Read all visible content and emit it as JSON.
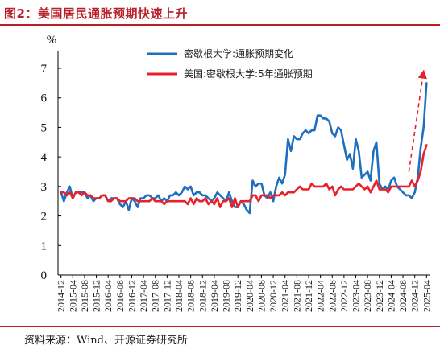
{
  "figure_title": "图2：美国居民通胀预期快速上升",
  "source": "资料来源：Wind、开源证券研究所",
  "colors": {
    "title": "#b8202a",
    "series_1": "#1f6fbf",
    "series_2": "#e8202a",
    "arrow": "#e8202a"
  },
  "chart_data": {
    "type": "line",
    "title": "",
    "ylabel": "%",
    "xlabel": "",
    "ylim": [
      0,
      7
    ],
    "yticks": [
      0,
      1,
      2,
      3,
      4,
      5,
      6,
      7
    ],
    "xlim": [
      "2014-11",
      "2025-05"
    ],
    "xticks": [
      "2014-12",
      "2015-04",
      "2015-08",
      "2015-12",
      "2016-04",
      "2016-08",
      "2016-12",
      "2017-04",
      "2017-08",
      "2017-12",
      "2018-04",
      "2018-08",
      "2018-12",
      "2019-04",
      "2019-08",
      "2019-12",
      "2020-04",
      "2020-08",
      "2020-12",
      "2021-04",
      "2021-08",
      "2021-12",
      "2022-04",
      "2022-08",
      "2022-12",
      "2023-04",
      "2023-08",
      "2023-12",
      "2024-04",
      "2024-08",
      "2024-12",
      "2025-04"
    ],
    "grid": false,
    "legend": "top-right",
    "series": [
      {
        "name": "密歇根大学:通胀预期变化",
        "points": [
          [
            "2014-12",
            2.8
          ],
          [
            "2015-01",
            2.5
          ],
          [
            "2015-02",
            2.8
          ],
          [
            "2015-03",
            3.0
          ],
          [
            "2015-04",
            2.6
          ],
          [
            "2015-05",
            2.8
          ],
          [
            "2015-06",
            2.8
          ],
          [
            "2015-07",
            2.8
          ],
          [
            "2015-08",
            2.8
          ],
          [
            "2015-09",
            2.6
          ],
          [
            "2015-10",
            2.7
          ],
          [
            "2015-11",
            2.5
          ],
          [
            "2015-12",
            2.6
          ],
          [
            "2016-01",
            2.6
          ],
          [
            "2016-02",
            2.7
          ],
          [
            "2016-03",
            2.7
          ],
          [
            "2016-04",
            2.5
          ],
          [
            "2016-05",
            2.6
          ],
          [
            "2016-06",
            2.6
          ],
          [
            "2016-07",
            2.6
          ],
          [
            "2016-08",
            2.4
          ],
          [
            "2016-09",
            2.3
          ],
          [
            "2016-10",
            2.5
          ],
          [
            "2016-11",
            2.2
          ],
          [
            "2016-12",
            2.6
          ],
          [
            "2017-01",
            2.5
          ],
          [
            "2017-02",
            2.3
          ],
          [
            "2017-03",
            2.6
          ],
          [
            "2017-04",
            2.6
          ],
          [
            "2017-05",
            2.7
          ],
          [
            "2017-06",
            2.7
          ],
          [
            "2017-07",
            2.6
          ],
          [
            "2017-08",
            2.6
          ],
          [
            "2017-09",
            2.7
          ],
          [
            "2017-10",
            2.5
          ],
          [
            "2017-11",
            2.6
          ],
          [
            "2017-12",
            2.5
          ],
          [
            "2018-01",
            2.7
          ],
          [
            "2018-02",
            2.7
          ],
          [
            "2018-03",
            2.8
          ],
          [
            "2018-04",
            2.7
          ],
          [
            "2018-05",
            2.8
          ],
          [
            "2018-06",
            3.0
          ],
          [
            "2018-07",
            2.9
          ],
          [
            "2018-08",
            3.0
          ],
          [
            "2018-09",
            2.7
          ],
          [
            "2018-10",
            2.8
          ],
          [
            "2018-11",
            2.8
          ],
          [
            "2018-12",
            2.7
          ],
          [
            "2019-01",
            2.7
          ],
          [
            "2019-02",
            2.6
          ],
          [
            "2019-03",
            2.5
          ],
          [
            "2019-04",
            2.6
          ],
          [
            "2019-05",
            2.8
          ],
          [
            "2019-06",
            2.7
          ],
          [
            "2019-07",
            2.6
          ],
          [
            "2019-08",
            2.5
          ],
          [
            "2019-09",
            2.8
          ],
          [
            "2019-10",
            2.5
          ],
          [
            "2019-11",
            2.3
          ],
          [
            "2019-12",
            2.3
          ],
          [
            "2020-01",
            2.5
          ],
          [
            "2020-02",
            2.4
          ],
          [
            "2020-03",
            2.2
          ],
          [
            "2020-04",
            2.1
          ],
          [
            "2020-05",
            3.2
          ],
          [
            "2020-06",
            3.0
          ],
          [
            "2020-07",
            3.1
          ],
          [
            "2020-08",
            3.1
          ],
          [
            "2020-09",
            2.7
          ],
          [
            "2020-10",
            2.6
          ],
          [
            "2020-11",
            2.8
          ],
          [
            "2020-12",
            2.5
          ],
          [
            "2021-01",
            3.0
          ],
          [
            "2021-02",
            3.3
          ],
          [
            "2021-03",
            3.1
          ],
          [
            "2021-04",
            3.4
          ],
          [
            "2021-05",
            4.6
          ],
          [
            "2021-06",
            4.2
          ],
          [
            "2021-07",
            4.7
          ],
          [
            "2021-08",
            4.6
          ],
          [
            "2021-09",
            4.6
          ],
          [
            "2021-10",
            4.8
          ],
          [
            "2021-11",
            4.9
          ],
          [
            "2021-12",
            4.8
          ],
          [
            "2022-01",
            4.9
          ],
          [
            "2022-02",
            4.9
          ],
          [
            "2022-03",
            5.4
          ],
          [
            "2022-04",
            5.4
          ],
          [
            "2022-05",
            5.3
          ],
          [
            "2022-06",
            5.3
          ],
          [
            "2022-07",
            5.2
          ],
          [
            "2022-08",
            4.8
          ],
          [
            "2022-09",
            4.7
          ],
          [
            "2022-10",
            5.0
          ],
          [
            "2022-11",
            4.9
          ],
          [
            "2022-12",
            4.4
          ],
          [
            "2023-01",
            3.9
          ],
          [
            "2023-02",
            4.1
          ],
          [
            "2023-03",
            3.6
          ],
          [
            "2023-04",
            4.6
          ],
          [
            "2023-05",
            4.2
          ],
          [
            "2023-06",
            3.3
          ],
          [
            "2023-07",
            3.4
          ],
          [
            "2023-08",
            3.5
          ],
          [
            "2023-09",
            3.2
          ],
          [
            "2023-10",
            4.2
          ],
          [
            "2023-11",
            4.5
          ],
          [
            "2023-12",
            3.1
          ],
          [
            "2024-01",
            2.9
          ],
          [
            "2024-02",
            3.0
          ],
          [
            "2024-03",
            2.9
          ],
          [
            "2024-04",
            3.2
          ],
          [
            "2024-05",
            3.3
          ],
          [
            "2024-06",
            3.0
          ],
          [
            "2024-07",
            2.9
          ],
          [
            "2024-08",
            2.8
          ],
          [
            "2024-09",
            2.7
          ],
          [
            "2024-10",
            2.7
          ],
          [
            "2024-11",
            2.6
          ],
          [
            "2024-12",
            2.8
          ],
          [
            "2025-01",
            3.3
          ],
          [
            "2025-02",
            4.3
          ],
          [
            "2025-03",
            5.0
          ],
          [
            "2025-04",
            6.5
          ]
        ]
      },
      {
        "name": "美国:密歇根大学:5年通胀预期",
        "points": [
          [
            "2014-12",
            2.8
          ],
          [
            "2015-01",
            2.8
          ],
          [
            "2015-02",
            2.7
          ],
          [
            "2015-03",
            2.8
          ],
          [
            "2015-04",
            2.6
          ],
          [
            "2015-05",
            2.8
          ],
          [
            "2015-06",
            2.8
          ],
          [
            "2015-07",
            2.7
          ],
          [
            "2015-08",
            2.8
          ],
          [
            "2015-09",
            2.7
          ],
          [
            "2015-10",
            2.7
          ],
          [
            "2015-11",
            2.6
          ],
          [
            "2015-12",
            2.6
          ],
          [
            "2016-01",
            2.6
          ],
          [
            "2016-02",
            2.7
          ],
          [
            "2016-03",
            2.7
          ],
          [
            "2016-04",
            2.5
          ],
          [
            "2016-05",
            2.5
          ],
          [
            "2016-06",
            2.6
          ],
          [
            "2016-07",
            2.6
          ],
          [
            "2016-08",
            2.5
          ],
          [
            "2016-09",
            2.5
          ],
          [
            "2016-10",
            2.5
          ],
          [
            "2016-11",
            2.6
          ],
          [
            "2016-12",
            2.6
          ],
          [
            "2017-01",
            2.6
          ],
          [
            "2017-02",
            2.5
          ],
          [
            "2017-03",
            2.5
          ],
          [
            "2017-04",
            2.5
          ],
          [
            "2017-05",
            2.5
          ],
          [
            "2017-06",
            2.5
          ],
          [
            "2017-07",
            2.6
          ],
          [
            "2017-08",
            2.5
          ],
          [
            "2017-09",
            2.5
          ],
          [
            "2017-10",
            2.5
          ],
          [
            "2017-11",
            2.4
          ],
          [
            "2017-12",
            2.5
          ],
          [
            "2018-01",
            2.5
          ],
          [
            "2018-02",
            2.5
          ],
          [
            "2018-03",
            2.5
          ],
          [
            "2018-04",
            2.5
          ],
          [
            "2018-05",
            2.5
          ],
          [
            "2018-06",
            2.5
          ],
          [
            "2018-07",
            2.4
          ],
          [
            "2018-08",
            2.6
          ],
          [
            "2018-09",
            2.4
          ],
          [
            "2018-10",
            2.6
          ],
          [
            "2018-11",
            2.5
          ],
          [
            "2018-12",
            2.5
          ],
          [
            "2019-01",
            2.6
          ],
          [
            "2019-02",
            2.4
          ],
          [
            "2019-03",
            2.5
          ],
          [
            "2019-04",
            2.4
          ],
          [
            "2019-05",
            2.6
          ],
          [
            "2019-06",
            2.3
          ],
          [
            "2019-07",
            2.5
          ],
          [
            "2019-08",
            2.5
          ],
          [
            "2019-09",
            2.6
          ],
          [
            "2019-10",
            2.3
          ],
          [
            "2019-11",
            2.6
          ],
          [
            "2019-12",
            2.3
          ],
          [
            "2020-01",
            2.5
          ],
          [
            "2020-02",
            2.5
          ],
          [
            "2020-03",
            2.5
          ],
          [
            "2020-04",
            2.5
          ],
          [
            "2020-05",
            2.7
          ],
          [
            "2020-06",
            2.7
          ],
          [
            "2020-07",
            2.5
          ],
          [
            "2020-08",
            2.7
          ],
          [
            "2020-09",
            2.7
          ],
          [
            "2020-10",
            2.7
          ],
          [
            "2020-11",
            2.6
          ],
          [
            "2020-12",
            2.7
          ],
          [
            "2021-01",
            2.7
          ],
          [
            "2021-02",
            2.7
          ],
          [
            "2021-03",
            2.8
          ],
          [
            "2021-04",
            2.7
          ],
          [
            "2021-05",
            2.8
          ],
          [
            "2021-06",
            2.8
          ],
          [
            "2021-07",
            2.8
          ],
          [
            "2021-08",
            2.9
          ],
          [
            "2021-09",
            3.0
          ],
          [
            "2021-10",
            2.9
          ],
          [
            "2021-11",
            2.9
          ],
          [
            "2021-12",
            2.9
          ],
          [
            "2022-01",
            3.1
          ],
          [
            "2022-02",
            3.0
          ],
          [
            "2022-03",
            3.0
          ],
          [
            "2022-04",
            3.0
          ],
          [
            "2022-05",
            3.0
          ],
          [
            "2022-06",
            3.1
          ],
          [
            "2022-07",
            2.9
          ],
          [
            "2022-08",
            3.0
          ],
          [
            "2022-09",
            2.7
          ],
          [
            "2022-10",
            2.9
          ],
          [
            "2022-11",
            3.0
          ],
          [
            "2022-12",
            2.9
          ],
          [
            "2023-01",
            2.9
          ],
          [
            "2023-02",
            2.9
          ],
          [
            "2023-03",
            2.9
          ],
          [
            "2023-04",
            3.0
          ],
          [
            "2023-05",
            3.1
          ],
          [
            "2023-06",
            3.0
          ],
          [
            "2023-07",
            2.9
          ],
          [
            "2023-08",
            3.0
          ],
          [
            "2023-09",
            2.8
          ],
          [
            "2023-10",
            3.0
          ],
          [
            "2023-11",
            3.2
          ],
          [
            "2023-12",
            2.9
          ],
          [
            "2024-01",
            2.9
          ],
          [
            "2024-02",
            2.9
          ],
          [
            "2024-03",
            2.8
          ],
          [
            "2024-04",
            3.0
          ],
          [
            "2024-05",
            3.0
          ],
          [
            "2024-06",
            3.0
          ],
          [
            "2024-07",
            3.0
          ],
          [
            "2024-08",
            3.0
          ],
          [
            "2024-09",
            3.0
          ],
          [
            "2024-10",
            3.0
          ],
          [
            "2024-11",
            3.2
          ],
          [
            "2024-12",
            3.0
          ],
          [
            "2025-01",
            3.2
          ],
          [
            "2025-02",
            3.5
          ],
          [
            "2025-03",
            4.1
          ],
          [
            "2025-04",
            4.4
          ]
        ]
      }
    ],
    "annotations": [
      {
        "type": "dashed-arrow",
        "from": [
          "2024-10",
          3.5
        ],
        "to": [
          "2025-03",
          6.9
        ]
      }
    ]
  }
}
